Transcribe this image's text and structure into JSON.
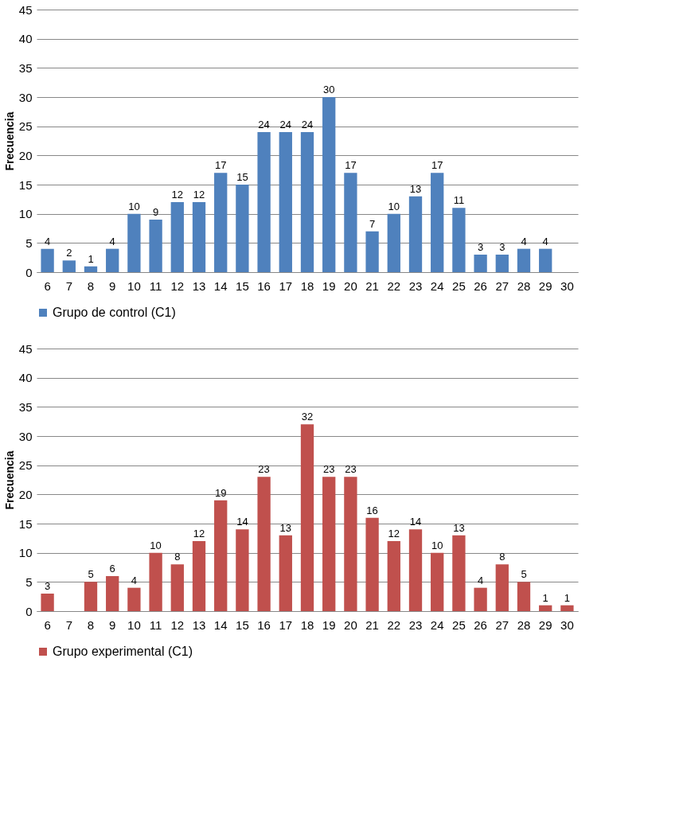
{
  "chart_data": [
    {
      "type": "bar",
      "ylabel": "Frecuencia",
      "categories": [
        "6",
        "7",
        "8",
        "9",
        "10",
        "11",
        "12",
        "13",
        "14",
        "15",
        "16",
        "17",
        "18",
        "19",
        "20",
        "21",
        "22",
        "23",
        "24",
        "25",
        "26",
        "27",
        "28",
        "29",
        "30"
      ],
      "series": [
        {
          "name": "Grupo de control (C1)",
          "color": "#4f81bd",
          "values": [
            4,
            2,
            1,
            4,
            10,
            9,
            12,
            12,
            17,
            15,
            24,
            24,
            24,
            30,
            17,
            7,
            10,
            13,
            17,
            11,
            3,
            3,
            4,
            4,
            null
          ]
        }
      ],
      "ylim": [
        0,
        45
      ],
      "yticks": [
        0,
        5,
        10,
        15,
        20,
        25,
        30,
        35,
        40,
        45
      ],
      "grid": "y",
      "legend": "bottom",
      "data_labels": true
    },
    {
      "type": "bar",
      "ylabel": "Frecuencia",
      "categories": [
        "6",
        "7",
        "8",
        "9",
        "10",
        "11",
        "12",
        "13",
        "14",
        "15",
        "16",
        "17",
        "18",
        "19",
        "20",
        "21",
        "22",
        "23",
        "24",
        "25",
        "26",
        "27",
        "28",
        "29",
        "30"
      ],
      "series": [
        {
          "name": "Grupo experimental (C1)",
          "color": "#c0504d",
          "values": [
            3,
            null,
            5,
            6,
            4,
            10,
            8,
            12,
            19,
            14,
            23,
            13,
            32,
            23,
            23,
            16,
            12,
            14,
            10,
            13,
            4,
            8,
            5,
            1,
            1
          ]
        }
      ],
      "ylim": [
        0,
        45
      ],
      "yticks": [
        0,
        5,
        10,
        15,
        20,
        25,
        30,
        35,
        40,
        45
      ],
      "grid": "y",
      "legend": "bottom",
      "data_labels": true
    }
  ]
}
